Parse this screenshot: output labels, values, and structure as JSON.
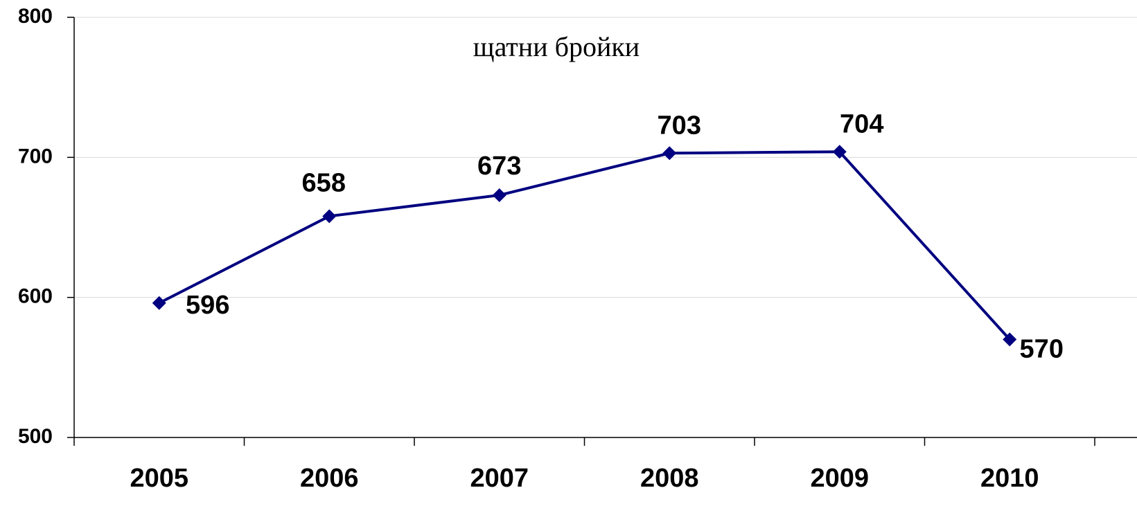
{
  "chart_data": {
    "type": "line",
    "title": "щатни бройки",
    "categories": [
      "2005",
      "2006",
      "2007",
      "2008",
      "2009",
      "2010"
    ],
    "values": [
      596,
      658,
      673,
      703,
      704,
      570
    ],
    "color": "#000080",
    "ylim": [
      500,
      800
    ],
    "yticks": [
      500,
      600,
      700,
      800
    ],
    "grid": true
  }
}
